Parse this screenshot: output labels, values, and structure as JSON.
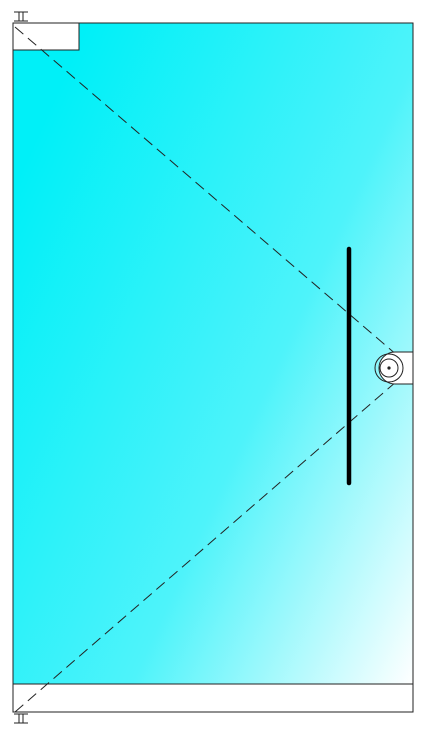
{
  "diagram": {
    "kind": "glass-door-elevation",
    "colors": {
      "glass_gradient_start": "#00f0f8",
      "glass_gradient_mid": "#4ef3fa",
      "glass_gradient_end": "#ffffff",
      "outline": "#222222",
      "handle": "#000000",
      "hardware_fill": "#ffffff"
    },
    "components": [
      {
        "name": "glass-panel",
        "label": ""
      },
      {
        "name": "top-patch-fitting",
        "label": ""
      },
      {
        "name": "bottom-rail",
        "label": ""
      },
      {
        "name": "top-pivot-icon",
        "label": ""
      },
      {
        "name": "bottom-pivot-icon",
        "label": ""
      },
      {
        "name": "lock-cylinder-icon",
        "label": ""
      },
      {
        "name": "pull-handle",
        "label": ""
      },
      {
        "name": "swing-indicator-lines",
        "label": ""
      }
    ]
  }
}
